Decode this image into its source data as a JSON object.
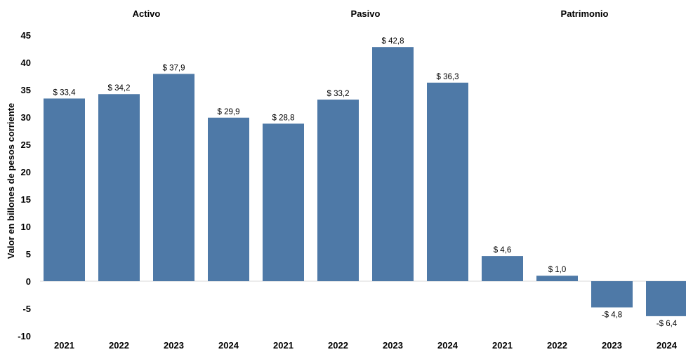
{
  "chart_data": {
    "type": "bar",
    "ylabel": "Valor en billones de pesos corriente",
    "ylim": [
      -10,
      45
    ],
    "yticks": [
      -10,
      -5,
      0,
      5,
      10,
      15,
      20,
      25,
      30,
      35,
      40,
      45
    ],
    "grid": false,
    "bar_color": "#4E79A7",
    "groups": [
      {
        "name": "Activo",
        "categories": [
          "2021",
          "2022",
          "2023",
          "2024"
        ],
        "values": [
          33.4,
          34.2,
          37.9,
          29.9
        ],
        "labels": [
          "$ 33,4",
          "$ 34,2",
          "$ 37,9",
          "$ 29,9"
        ]
      },
      {
        "name": "Pasivo",
        "categories": [
          "2021",
          "2022",
          "2023",
          "2024"
        ],
        "values": [
          28.8,
          33.2,
          42.8,
          36.3
        ],
        "labels": [
          "$ 28,8",
          "$ 33,2",
          "$ 42,8",
          "$ 36,3"
        ]
      },
      {
        "name": "Patrimonio",
        "categories": [
          "2021",
          "2022",
          "2023",
          "2024"
        ],
        "values": [
          4.6,
          1.0,
          -4.8,
          -6.4
        ],
        "labels": [
          "$ 4,6",
          "$ 1,0",
          "-$ 4,8",
          "-$ 6,4"
        ]
      }
    ]
  }
}
